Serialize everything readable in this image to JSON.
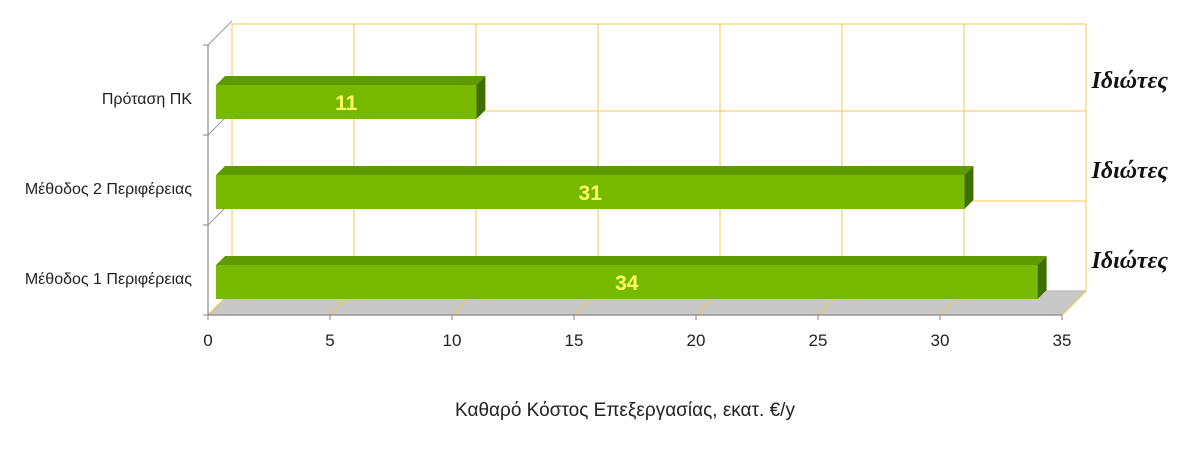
{
  "chart_data": {
    "type": "bar",
    "orientation": "horizontal",
    "three_d": true,
    "categories": [
      "Πρόταση ΠΚ",
      "Μέθοδος 2 Περιφέρειας",
      "Μέθοδος 1 Περιφέρειας"
    ],
    "values": [
      11,
      31,
      34
    ],
    "value_labels": [
      "11",
      "31",
      "34"
    ],
    "side_notes": [
      "Ιδιώτες",
      "Ιδιώτες",
      "Ιδιώτες"
    ],
    "xlabel": "Καθαρό Κόστος Επεξεργασίας, εκατ. €/y",
    "xlim": [
      0,
      35
    ],
    "xticks": [
      0,
      5,
      10,
      15,
      20,
      25,
      30,
      35
    ],
    "xtick_labels": [
      "0",
      "5",
      "10",
      "15",
      "20",
      "25",
      "30",
      "35"
    ],
    "grid": true,
    "colors": {
      "bar_front": "#76b900",
      "bar_top": "#5e9a00",
      "bar_side": "#3f6e00",
      "value_label": "#ffff66",
      "gridline": "#f2c94c",
      "floor": "#c8c8c8"
    }
  }
}
